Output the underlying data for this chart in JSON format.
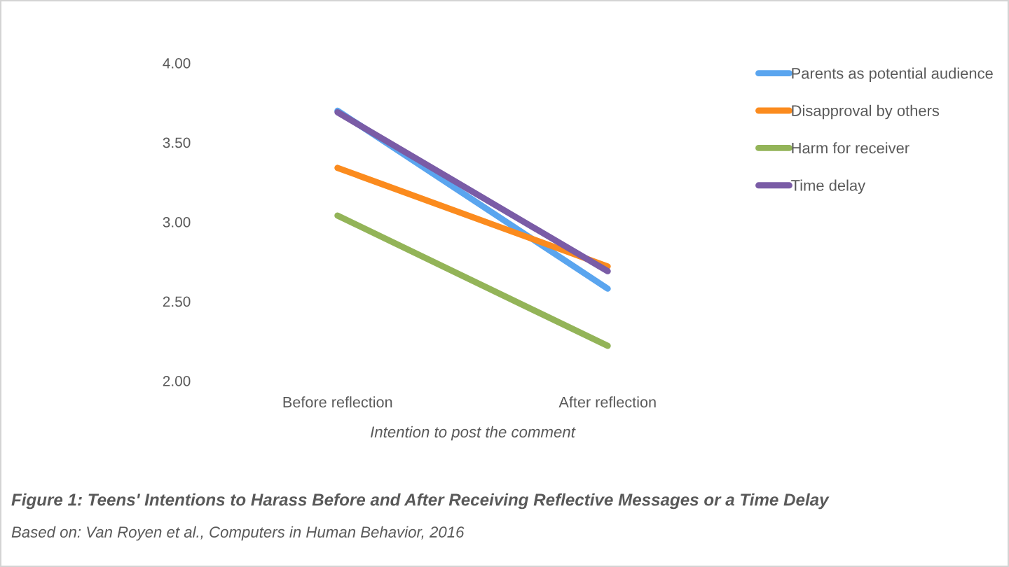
{
  "chart_data": {
    "type": "line",
    "title": "Figure 1: Teens' Intentions to Harass Before and After Receiving Reflective Messages or a Time Delay",
    "xlabel": "Intention to post the comment",
    "annotations": [
      "Based on: Van Royen et al., Computers in Human Behavior, 2016"
    ],
    "categories": [
      "Before reflection",
      "After reflection"
    ],
    "series": [
      {
        "name": "Parents as potential audience",
        "color": "#5aa5ef",
        "values": [
          3.7,
          2.58
        ]
      },
      {
        "name": "Disapproval by others",
        "color": "#fb8b1e",
        "values": [
          3.34,
          2.72
        ]
      },
      {
        "name": "Harm for receiver",
        "color": "#93b458",
        "values": [
          3.04,
          2.22
        ]
      },
      {
        "name": "Time delay",
        "color": "#7a5ca6",
        "values": [
          3.69,
          2.69
        ]
      }
    ],
    "ylim": [
      2,
      4
    ],
    "yticks": [
      {
        "value": 2,
        "label": "2.00"
      },
      {
        "value": 2.5,
        "label": "2.50"
      },
      {
        "value": 3,
        "label": "3.00"
      },
      {
        "value": 3.5,
        "label": "3.50"
      },
      {
        "value": 4,
        "label": "4.00"
      }
    ],
    "legend": "top right",
    "line_style": "solid"
  }
}
